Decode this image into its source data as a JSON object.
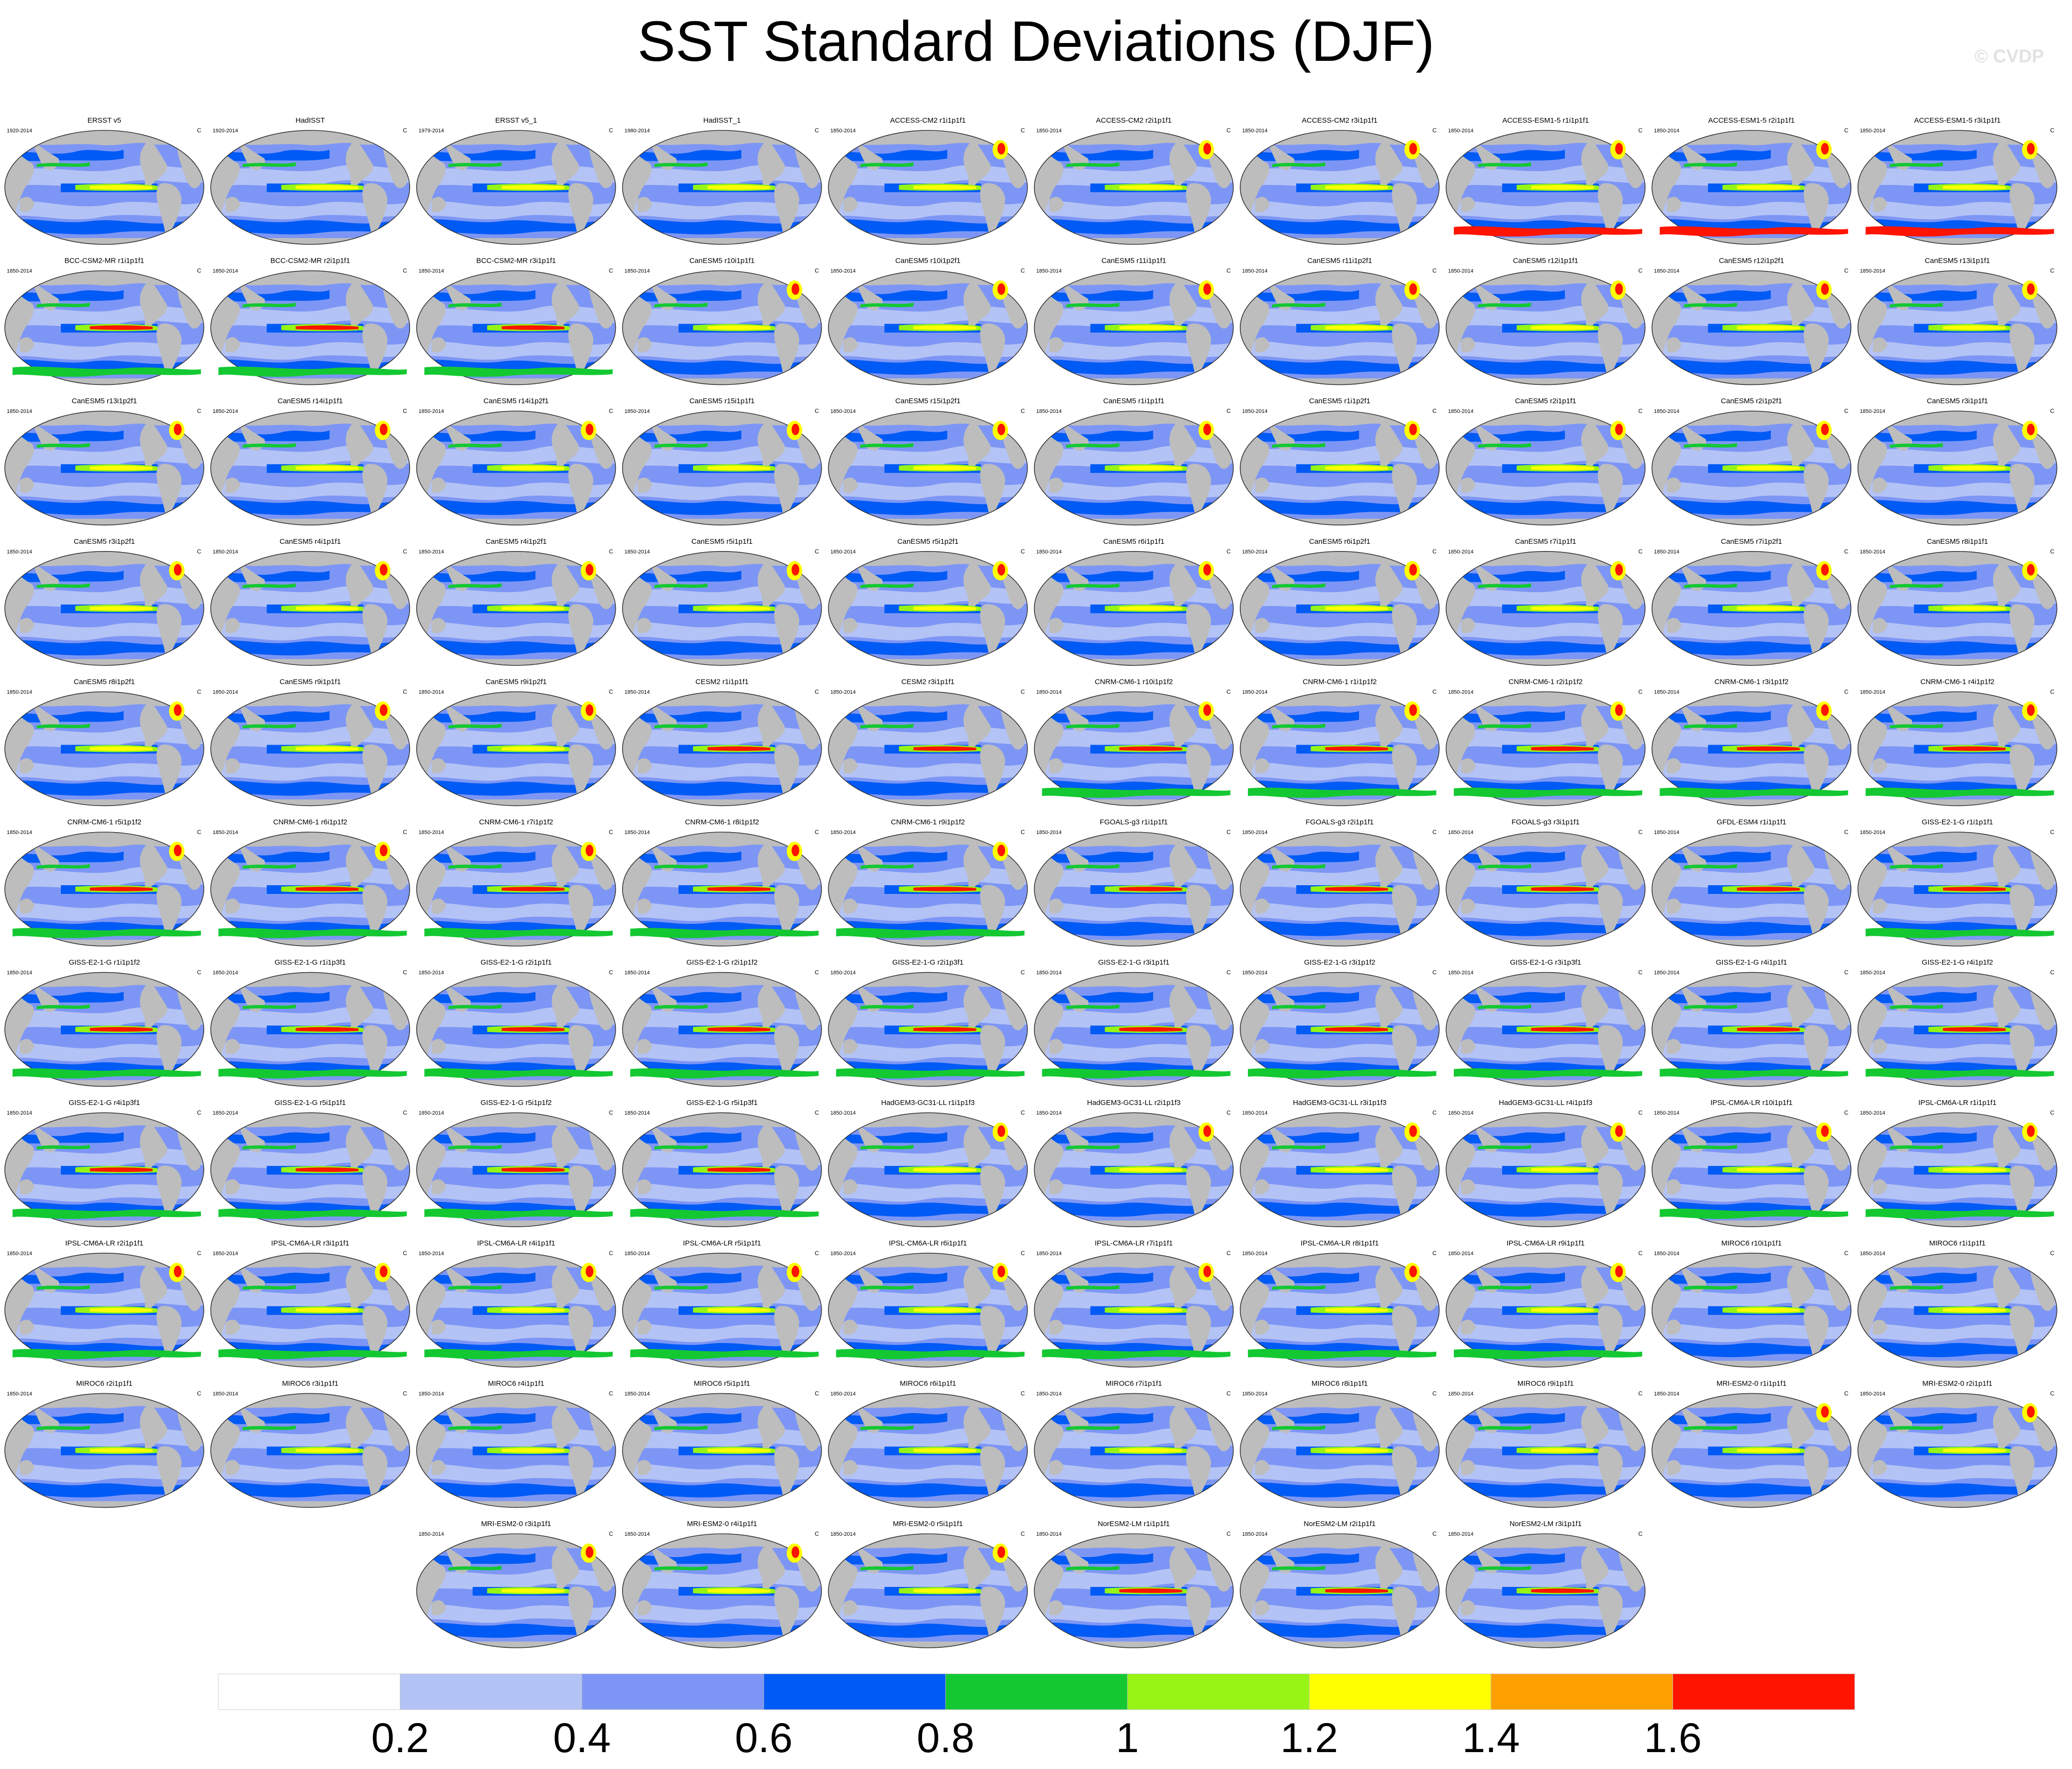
{
  "title": "SST Standard Deviations (DJF)",
  "watermark": "© CVDP",
  "chart_data": {
    "type": "heatmap",
    "title": "SST Standard Deviations (DJF)",
    "units": "C",
    "colorbar": {
      "levels": [
        0.2,
        0.4,
        0.6,
        0.8,
        1,
        1.2,
        1.4,
        1.6
      ],
      "tick_labels": [
        "0.2",
        "0.4",
        "0.6",
        "0.8",
        "1",
        "1.2",
        "1.4",
        "1.6"
      ],
      "colors": [
        "#ffffff",
        "#b4c3f5",
        "#7d96f5",
        "#005af5",
        "#14c832",
        "#96f514",
        "#ffff00",
        "#ffa000",
        "#ff1400"
      ]
    },
    "panels": [
      {
        "name": "ERSST v5",
        "period": "1920-2014",
        "units": "C"
      },
      {
        "name": "HadISST",
        "period": "1920-2014",
        "units": "C"
      },
      {
        "name": "ERSST v5_1",
        "period": "1979-2014",
        "units": "C"
      },
      {
        "name": "HadISST_1",
        "period": "1980-2014",
        "units": "C"
      },
      {
        "name": "ACCESS-CM2 r1i1p1f1",
        "period": "1850-2014",
        "units": "C"
      },
      {
        "name": "ACCESS-CM2 r2i1p1f1",
        "period": "1850-2014",
        "units": "C"
      },
      {
        "name": "ACCESS-CM2 r3i1p1f1",
        "period": "1850-2014",
        "units": "C"
      },
      {
        "name": "ACCESS-ESM1-5 r1i1p1f1",
        "period": "1850-2014",
        "units": "C"
      },
      {
        "name": "ACCESS-ESM1-5 r2i1p1f1",
        "period": "1850-2014",
        "units": "C"
      },
      {
        "name": "ACCESS-ESM1-5 r3i1p1f1",
        "period": "1850-2014",
        "units": "C"
      },
      {
        "name": "BCC-CSM2-MR r1i1p1f1",
        "period": "1850-2014",
        "units": "C"
      },
      {
        "name": "BCC-CSM2-MR r2i1p1f1",
        "period": "1850-2014",
        "units": "C"
      },
      {
        "name": "BCC-CSM2-MR r3i1p1f1",
        "period": "1850-2014",
        "units": "C"
      },
      {
        "name": "CanESM5 r10i1p1f1",
        "period": "1850-2014",
        "units": "C"
      },
      {
        "name": "CanESM5 r10i1p2f1",
        "period": "1850-2014",
        "units": "C"
      },
      {
        "name": "CanESM5 r11i1p1f1",
        "period": "1850-2014",
        "units": "C"
      },
      {
        "name": "CanESM5 r11i1p2f1",
        "period": "1850-2014",
        "units": "C"
      },
      {
        "name": "CanESM5 r12i1p1f1",
        "period": "1850-2014",
        "units": "C"
      },
      {
        "name": "CanESM5 r12i1p2f1",
        "period": "1850-2014",
        "units": "C"
      },
      {
        "name": "CanESM5 r13i1p1f1",
        "period": "1850-2014",
        "units": "C"
      },
      {
        "name": "CanESM5 r13i1p2f1",
        "period": "1850-2014",
        "units": "C"
      },
      {
        "name": "CanESM5 r14i1p1f1",
        "period": "1850-2014",
        "units": "C"
      },
      {
        "name": "CanESM5 r14i1p2f1",
        "period": "1850-2014",
        "units": "C"
      },
      {
        "name": "CanESM5 r15i1p1f1",
        "period": "1850-2014",
        "units": "C"
      },
      {
        "name": "CanESM5 r15i1p2f1",
        "period": "1850-2014",
        "units": "C"
      },
      {
        "name": "CanESM5 r1i1p1f1",
        "period": "1850-2014",
        "units": "C"
      },
      {
        "name": "CanESM5 r1i1p2f1",
        "period": "1850-2014",
        "units": "C"
      },
      {
        "name": "CanESM5 r2i1p1f1",
        "period": "1850-2014",
        "units": "C"
      },
      {
        "name": "CanESM5 r2i1p2f1",
        "period": "1850-2014",
        "units": "C"
      },
      {
        "name": "CanESM5 r3i1p1f1",
        "period": "1850-2014",
        "units": "C"
      },
      {
        "name": "CanESM5 r3i1p2f1",
        "period": "1850-2014",
        "units": "C"
      },
      {
        "name": "CanESM5 r4i1p1f1",
        "period": "1850-2014",
        "units": "C"
      },
      {
        "name": "CanESM5 r4i1p2f1",
        "period": "1850-2014",
        "units": "C"
      },
      {
        "name": "CanESM5 r5i1p1f1",
        "period": "1850-2014",
        "units": "C"
      },
      {
        "name": "CanESM5 r5i1p2f1",
        "period": "1850-2014",
        "units": "C"
      },
      {
        "name": "CanESM5 r6i1p1f1",
        "period": "1850-2014",
        "units": "C"
      },
      {
        "name": "CanESM5 r6i1p2f1",
        "period": "1850-2014",
        "units": "C"
      },
      {
        "name": "CanESM5 r7i1p1f1",
        "period": "1850-2014",
        "units": "C"
      },
      {
        "name": "CanESM5 r7i1p2f1",
        "period": "1850-2014",
        "units": "C"
      },
      {
        "name": "CanESM5 r8i1p1f1",
        "period": "1850-2014",
        "units": "C"
      },
      {
        "name": "CanESM5 r8i1p2f1",
        "period": "1850-2014",
        "units": "C"
      },
      {
        "name": "CanESM5 r9i1p1f1",
        "period": "1850-2014",
        "units": "C"
      },
      {
        "name": "CanESM5 r9i1p2f1",
        "period": "1850-2014",
        "units": "C"
      },
      {
        "name": "CESM2 r1i1p1f1",
        "period": "1850-2014",
        "units": "C"
      },
      {
        "name": "CESM2 r3i1p1f1",
        "period": "1850-2014",
        "units": "C"
      },
      {
        "name": "CNRM-CM6-1 r10i1p1f2",
        "period": "1850-2014",
        "units": "C"
      },
      {
        "name": "CNRM-CM6-1 r1i1p1f2",
        "period": "1850-2014",
        "units": "C"
      },
      {
        "name": "CNRM-CM6-1 r2i1p1f2",
        "period": "1850-2014",
        "units": "C"
      },
      {
        "name": "CNRM-CM6-1 r3i1p1f2",
        "period": "1850-2014",
        "units": "C"
      },
      {
        "name": "CNRM-CM6-1 r4i1p1f2",
        "period": "1850-2014",
        "units": "C"
      },
      {
        "name": "CNRM-CM6-1 r5i1p1f2",
        "period": "1850-2014",
        "units": "C"
      },
      {
        "name": "CNRM-CM6-1 r6i1p1f2",
        "period": "1850-2014",
        "units": "C"
      },
      {
        "name": "CNRM-CM6-1 r7i1p1f2",
        "period": "1850-2014",
        "units": "C"
      },
      {
        "name": "CNRM-CM6-1 r8i1p1f2",
        "period": "1850-2014",
        "units": "C"
      },
      {
        "name": "CNRM-CM6-1 r9i1p1f2",
        "period": "1850-2014",
        "units": "C"
      },
      {
        "name": "FGOALS-g3 r1i1p1f1",
        "period": "1850-2014",
        "units": "C"
      },
      {
        "name": "FGOALS-g3 r2i1p1f1",
        "period": "1850-2014",
        "units": "C"
      },
      {
        "name": "FGOALS-g3 r3i1p1f1",
        "period": "1850-2014",
        "units": "C"
      },
      {
        "name": "GFDL-ESM4 r1i1p1f1",
        "period": "1850-2014",
        "units": "C"
      },
      {
        "name": "GISS-E2-1-G r1i1p1f1",
        "period": "1850-2014",
        "units": "C"
      },
      {
        "name": "GISS-E2-1-G r1i1p1f2",
        "period": "1850-2014",
        "units": "C"
      },
      {
        "name": "GISS-E2-1-G r1i1p3f1",
        "period": "1850-2014",
        "units": "C"
      },
      {
        "name": "GISS-E2-1-G r2i1p1f1",
        "period": "1850-2014",
        "units": "C"
      },
      {
        "name": "GISS-E2-1-G r2i1p1f2",
        "period": "1850-2014",
        "units": "C"
      },
      {
        "name": "GISS-E2-1-G r2i1p3f1",
        "period": "1850-2014",
        "units": "C"
      },
      {
        "name": "GISS-E2-1-G r3i1p1f1",
        "period": "1850-2014",
        "units": "C"
      },
      {
        "name": "GISS-E2-1-G r3i1p1f2",
        "period": "1850-2014",
        "units": "C"
      },
      {
        "name": "GISS-E2-1-G r3i1p3f1",
        "period": "1850-2014",
        "units": "C"
      },
      {
        "name": "GISS-E2-1-G r4i1p1f1",
        "period": "1850-2014",
        "units": "C"
      },
      {
        "name": "GISS-E2-1-G r4i1p1f2",
        "period": "1850-2014",
        "units": "C"
      },
      {
        "name": "GISS-E2-1-G r4i1p3f1",
        "period": "1850-2014",
        "units": "C"
      },
      {
        "name": "GISS-E2-1-G r5i1p1f1",
        "period": "1850-2014",
        "units": "C"
      },
      {
        "name": "GISS-E2-1-G r5i1p1f2",
        "period": "1850-2014",
        "units": "C"
      },
      {
        "name": "GISS-E2-1-G r5i1p3f1",
        "period": "1850-2014",
        "units": "C"
      },
      {
        "name": "HadGEM3-GC31-LL r1i1p1f3",
        "period": "1850-2014",
        "units": "C"
      },
      {
        "name": "HadGEM3-GC31-LL r2i1p1f3",
        "period": "1850-2014",
        "units": "C"
      },
      {
        "name": "HadGEM3-GC31-LL r3i1p1f3",
        "period": "1850-2014",
        "units": "C"
      },
      {
        "name": "HadGEM3-GC31-LL r4i1p1f3",
        "period": "1850-2014",
        "units": "C"
      },
      {
        "name": "IPSL-CM6A-LR r10i1p1f1",
        "period": "1850-2014",
        "units": "C"
      },
      {
        "name": "IPSL-CM6A-LR r1i1p1f1",
        "period": "1850-2014",
        "units": "C"
      },
      {
        "name": "IPSL-CM6A-LR r2i1p1f1",
        "period": "1850-2014",
        "units": "C"
      },
      {
        "name": "IPSL-CM6A-LR r3i1p1f1",
        "period": "1850-2014",
        "units": "C"
      },
      {
        "name": "IPSL-CM6A-LR r4i1p1f1",
        "period": "1850-2014",
        "units": "C"
      },
      {
        "name": "IPSL-CM6A-LR r5i1p1f1",
        "period": "1850-2014",
        "units": "C"
      },
      {
        "name": "IPSL-CM6A-LR r6i1p1f1",
        "period": "1850-2014",
        "units": "C"
      },
      {
        "name": "IPSL-CM6A-LR r7i1p1f1",
        "period": "1850-2014",
        "units": "C"
      },
      {
        "name": "IPSL-CM6A-LR r8i1p1f1",
        "period": "1850-2014",
        "units": "C"
      },
      {
        "name": "IPSL-CM6A-LR r9i1p1f1",
        "period": "1850-2014",
        "units": "C"
      },
      {
        "name": "MIROC6 r10i1p1f1",
        "period": "1850-2014",
        "units": "C"
      },
      {
        "name": "MIROC6 r1i1p1f1",
        "period": "1850-2014",
        "units": "C"
      },
      {
        "name": "MIROC6 r2i1p1f1",
        "period": "1850-2014",
        "units": "C"
      },
      {
        "name": "MIROC6 r3i1p1f1",
        "period": "1850-2014",
        "units": "C"
      },
      {
        "name": "MIROC6 r4i1p1f1",
        "period": "1850-2014",
        "units": "C"
      },
      {
        "name": "MIROC6 r5i1p1f1",
        "period": "1850-2014",
        "units": "C"
      },
      {
        "name": "MIROC6 r6i1p1f1",
        "period": "1850-2014",
        "units": "C"
      },
      {
        "name": "MIROC6 r7i1p1f1",
        "period": "1850-2014",
        "units": "C"
      },
      {
        "name": "MIROC6 r8i1p1f1",
        "period": "1850-2014",
        "units": "C"
      },
      {
        "name": "MIROC6 r9i1p1f1",
        "period": "1850-2014",
        "units": "C"
      },
      {
        "name": "MRI-ESM2-0 r1i1p1f1",
        "period": "1850-2014",
        "units": "C"
      },
      {
        "name": "MRI-ESM2-0 r2i1p1f1",
        "period": "1850-2014",
        "units": "C"
      },
      {
        "name": "MRI-ESM2-0 r3i1p1f1",
        "period": "1850-2014",
        "units": "C"
      },
      {
        "name": "MRI-ESM2-0 r4i1p1f1",
        "period": "1850-2014",
        "units": "C"
      },
      {
        "name": "MRI-ESM2-0 r5i1p1f1",
        "period": "1850-2014",
        "units": "C"
      },
      {
        "name": "NorESM2-LM r1i1p1f1",
        "period": "1850-2014",
        "units": "C"
      },
      {
        "name": "NorESM2-LM r2i1p1f1",
        "period": "1850-2014",
        "units": "C"
      },
      {
        "name": "NorESM2-LM r3i1p1f1",
        "period": "1850-2014",
        "units": "C"
      }
    ]
  }
}
